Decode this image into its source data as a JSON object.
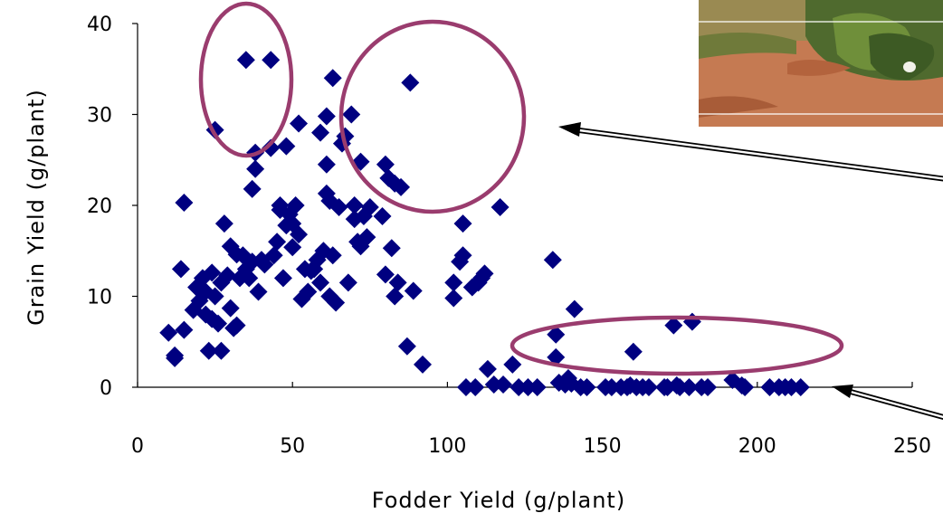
{
  "chart_data": {
    "type": "scatter",
    "title": "",
    "xlabel": "Fodder Yield (g/plant)",
    "ylabel": "Grain Yield (g/plant)",
    "xlim": [
      0,
      250
    ],
    "ylim": [
      0,
      40
    ],
    "x_ticks": [
      0,
      50,
      100,
      150,
      200,
      250
    ],
    "y_ticks": [
      0,
      10,
      20,
      30,
      40
    ],
    "grid": false,
    "legend": "none",
    "marker": "diamond",
    "colors": {
      "marker": "#000080",
      "ellipse": "#9a3c6e",
      "arrow": "#000000",
      "photo_soil": "#c0714a"
    },
    "series": [
      {
        "points": [
          [
            10,
            6
          ],
          [
            12,
            3.5
          ],
          [
            12,
            3.2
          ],
          [
            15,
            6.3
          ],
          [
            14,
            13
          ],
          [
            15,
            20.3
          ],
          [
            18,
            8.5
          ],
          [
            19,
            11
          ],
          [
            20,
            9.5
          ],
          [
            21,
            12
          ],
          [
            22,
            10.5
          ],
          [
            22,
            8
          ],
          [
            23,
            4
          ],
          [
            24,
            7.5
          ],
          [
            24,
            12.6
          ],
          [
            25,
            10
          ],
          [
            25,
            28.3
          ],
          [
            26,
            7
          ],
          [
            27,
            4
          ],
          [
            27,
            11.5
          ],
          [
            28,
            18
          ],
          [
            29,
            12.3
          ],
          [
            30,
            15.5
          ],
          [
            30,
            8.7
          ],
          [
            31,
            6.5
          ],
          [
            32,
            14.6
          ],
          [
            32,
            6.8
          ],
          [
            33,
            12
          ],
          [
            34,
            14.5
          ],
          [
            35,
            36
          ],
          [
            35,
            13
          ],
          [
            36,
            12
          ],
          [
            37,
            13.8
          ],
          [
            37,
            21.8
          ],
          [
            38,
            24
          ],
          [
            38,
            25.8
          ],
          [
            39,
            10.5
          ],
          [
            40,
            14
          ],
          [
            41,
            13.5
          ],
          [
            43,
            36
          ],
          [
            43,
            26.3
          ],
          [
            44,
            14.5
          ],
          [
            45,
            16
          ],
          [
            46,
            20
          ],
          [
            46,
            19.5
          ],
          [
            47,
            12
          ],
          [
            48,
            26.5
          ],
          [
            48,
            17.8
          ],
          [
            49,
            19
          ],
          [
            50,
            18
          ],
          [
            50,
            15.4
          ],
          [
            51,
            20
          ],
          [
            52,
            16.8
          ],
          [
            52,
            29
          ],
          [
            53,
            9.7
          ],
          [
            54,
            13
          ],
          [
            55,
            10.5
          ],
          [
            56,
            12.8
          ],
          [
            57,
            13
          ],
          [
            58,
            14
          ],
          [
            59,
            28
          ],
          [
            59,
            11.5
          ],
          [
            60,
            15
          ],
          [
            61,
            21.3
          ],
          [
            61,
            29.8
          ],
          [
            61,
            24.5
          ],
          [
            62,
            10
          ],
          [
            62,
            20.5
          ],
          [
            63,
            34
          ],
          [
            63,
            14.5
          ],
          [
            64,
            9.3
          ],
          [
            65,
            19.8
          ],
          [
            66,
            26.8
          ],
          [
            67,
            27.6
          ],
          [
            68,
            11.5
          ],
          [
            69,
            30
          ],
          [
            70,
            20
          ],
          [
            70,
            18.5
          ],
          [
            71,
            16
          ],
          [
            72,
            15.5
          ],
          [
            72,
            24.8
          ],
          [
            73,
            18.8
          ],
          [
            74,
            16.5
          ],
          [
            75,
            19.8
          ],
          [
            79,
            18.8
          ],
          [
            80,
            24.5
          ],
          [
            80,
            12.4
          ],
          [
            81,
            23
          ],
          [
            82,
            15.3
          ],
          [
            83,
            22.4
          ],
          [
            83,
            10
          ],
          [
            84,
            11.5
          ],
          [
            85,
            22
          ],
          [
            87,
            4.5
          ],
          [
            88,
            33.5
          ],
          [
            89,
            10.6
          ],
          [
            92,
            2.5
          ],
          [
            102,
            11.5
          ],
          [
            102,
            9.8
          ],
          [
            104,
            13.8
          ],
          [
            105,
            14.5
          ],
          [
            105,
            18
          ],
          [
            106,
            0
          ],
          [
            108,
            11
          ],
          [
            109,
            0
          ],
          [
            110,
            11.5
          ],
          [
            111,
            12
          ],
          [
            112,
            12.5
          ],
          [
            113,
            2
          ],
          [
            115,
            0.3
          ],
          [
            117,
            19.8
          ],
          [
            118,
            0.3
          ],
          [
            121,
            2.5
          ],
          [
            123,
            0
          ],
          [
            126,
            0
          ],
          [
            129,
            0
          ],
          [
            134,
            14
          ],
          [
            135,
            5.8
          ],
          [
            135,
            3.3
          ],
          [
            136,
            0.5
          ],
          [
            138,
            0.3
          ],
          [
            139,
            1
          ],
          [
            140,
            0.4
          ],
          [
            141,
            8.6
          ],
          [
            143,
            0
          ],
          [
            145,
            0
          ],
          [
            151,
            0
          ],
          [
            153,
            0
          ],
          [
            156,
            0
          ],
          [
            158,
            0
          ],
          [
            159,
            0.2
          ],
          [
            160,
            3.9
          ],
          [
            161,
            0
          ],
          [
            163,
            0
          ],
          [
            165,
            0
          ],
          [
            170,
            0
          ],
          [
            171,
            0
          ],
          [
            173,
            6.8
          ],
          [
            174,
            0.2
          ],
          [
            175,
            0
          ],
          [
            178,
            0
          ],
          [
            179,
            7.2
          ],
          [
            182,
            0
          ],
          [
            184,
            0
          ],
          [
            192,
            0.8
          ],
          [
            195,
            0.2
          ],
          [
            196,
            0
          ],
          [
            204,
            0
          ],
          [
            207,
            0
          ],
          [
            209,
            0
          ],
          [
            211,
            0
          ],
          [
            214,
            0
          ]
        ]
      }
    ],
    "annotations": [
      {
        "type": "ellipse",
        "label": "",
        "region": "high grain yield, low fodder yield"
      },
      {
        "type": "ellipse",
        "label": "",
        "region": "high grain yield, moderate fodder yield"
      },
      {
        "type": "ellipse",
        "label": "",
        "region": "low grain yield, high fodder yield"
      },
      {
        "type": "arrow",
        "label": "",
        "from": "photo",
        "to": "upper ellipse"
      },
      {
        "type": "arrow",
        "label": "",
        "from": "off-chart right",
        "to": "lower points"
      }
    ],
    "image_inset": {
      "name": "field-photo",
      "label": ""
    }
  }
}
